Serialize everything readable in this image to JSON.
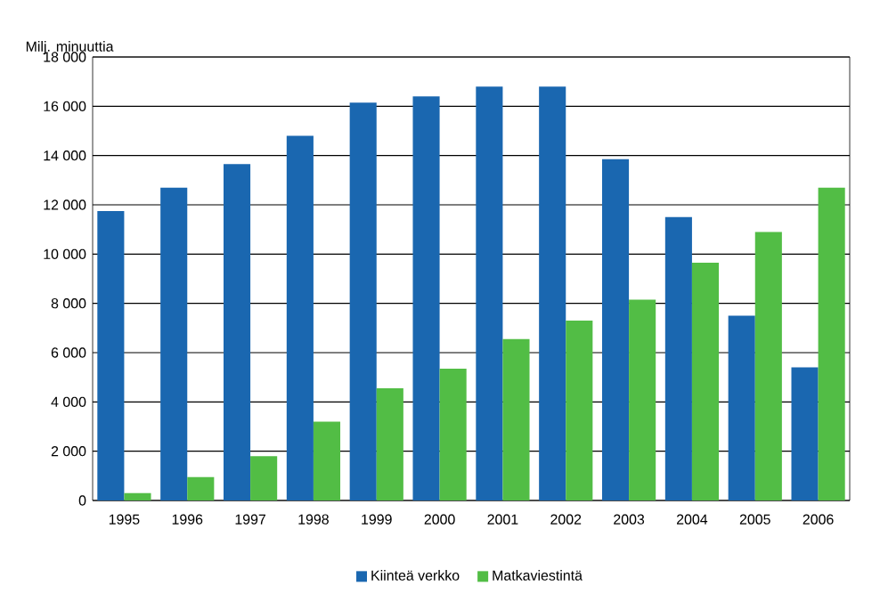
{
  "chart_data": {
    "type": "bar",
    "ylabel": "Milj. minuuttia",
    "categories": [
      "1995",
      "1996",
      "1997",
      "1998",
      "1999",
      "2000",
      "2001",
      "2002",
      "2003",
      "2004",
      "2005",
      "2006"
    ],
    "series": [
      {
        "name": "Kiinteä verkko",
        "color": "#1a67b0",
        "values": [
          11750,
          12700,
          13650,
          14800,
          16150,
          16400,
          16800,
          16800,
          13850,
          11500,
          7500,
          5400
        ]
      },
      {
        "name": "Matkaviestintä",
        "color": "#52bd45",
        "values": [
          300,
          950,
          1800,
          3200,
          4550,
          5350,
          6550,
          7300,
          8150,
          9650,
          10900,
          12700
        ]
      }
    ],
    "ylim": [
      0,
      18000
    ],
    "yticks": [
      {
        "value": 0,
        "label": "0"
      },
      {
        "value": 2000,
        "label": "2 000"
      },
      {
        "value": 4000,
        "label": "4 000"
      },
      {
        "value": 6000,
        "label": "6 000"
      },
      {
        "value": 8000,
        "label": "8 000"
      },
      {
        "value": 10000,
        "label": "10 000"
      },
      {
        "value": 12000,
        "label": "12 000"
      },
      {
        "value": 14000,
        "label": "14 000"
      },
      {
        "value": 16000,
        "label": "16 000"
      },
      {
        "value": 18000,
        "label": "18 000"
      }
    ],
    "grid": "y",
    "legend": "bottom"
  }
}
